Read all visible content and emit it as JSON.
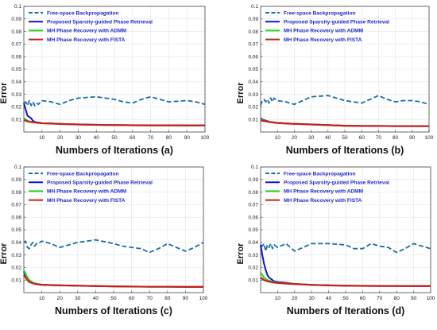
{
  "chart_data": [
    {
      "type": "line",
      "xlabel": "Numbers of Iterations (a)",
      "ylabel": "Error",
      "xlim": [
        0,
        100
      ],
      "ylim": [
        0,
        0.1
      ],
      "xticks": [
        "10",
        "20",
        "30",
        "40",
        "50",
        "60",
        "70",
        "80",
        "90",
        "100"
      ],
      "yticks": [
        "0.01",
        "0.02",
        "0.03",
        "0.04",
        "0.05",
        "0.06",
        "0.07",
        "0.08",
        "0.09",
        "0.1"
      ],
      "legend": "top-left",
      "series": [
        {
          "name": "Free-space Backpropagation",
          "color": "#1a6fa3",
          "style": "dashed",
          "x": [
            0,
            1,
            2,
            3,
            4,
            5,
            6,
            7,
            8,
            10,
            15,
            20,
            25,
            30,
            40,
            50,
            55,
            60,
            65,
            70,
            75,
            80,
            85,
            90,
            95,
            100
          ],
          "y": [
            0.023,
            0.024,
            0.021,
            0.025,
            0.021,
            0.024,
            0.021,
            0.023,
            0.022,
            0.025,
            0.024,
            0.022,
            0.025,
            0.027,
            0.028,
            0.026,
            0.024,
            0.023,
            0.026,
            0.028,
            0.026,
            0.024,
            0.0245,
            0.025,
            0.024,
            0.022
          ]
        },
        {
          "name": "Proposed Sparsity-guided Phase Retrieval",
          "color": "#1414c8",
          "style": "solid",
          "x": [
            0,
            1,
            2,
            3,
            4,
            5,
            6,
            8,
            10,
            15,
            20,
            30,
            40,
            50,
            60,
            70,
            80,
            90,
            100
          ],
          "y": [
            0.023,
            0.018,
            0.013,
            0.012,
            0.011,
            0.009,
            0.008,
            0.0075,
            0.007,
            0.0068,
            0.0065,
            0.006,
            0.0057,
            0.0055,
            0.0054,
            0.0053,
            0.0053,
            0.0052,
            0.0052
          ]
        },
        {
          "name": "MH Phase Recovery with ADMM",
          "color": "#22d622",
          "style": "solid",
          "x": [
            0,
            1,
            2,
            3,
            4,
            5,
            6,
            8,
            10,
            15,
            20,
            30,
            40,
            50,
            60,
            70,
            80,
            90,
            100
          ],
          "y": [
            0.011,
            0.01,
            0.009,
            0.0085,
            0.008,
            0.0078,
            0.0076,
            0.0073,
            0.007,
            0.0067,
            0.0064,
            0.006,
            0.0057,
            0.0055,
            0.0054,
            0.0053,
            0.0053,
            0.0052,
            0.0052
          ]
        },
        {
          "name": "MH Phase Recovery with FISTA",
          "color": "#c81e1e",
          "style": "solid",
          "x": [
            0,
            1,
            2,
            3,
            4,
            5,
            6,
            8,
            10,
            15,
            20,
            30,
            40,
            50,
            60,
            70,
            80,
            90,
            100
          ],
          "y": [
            0.0095,
            0.009,
            0.0085,
            0.0082,
            0.008,
            0.0078,
            0.0076,
            0.0073,
            0.007,
            0.0067,
            0.0064,
            0.006,
            0.0057,
            0.0055,
            0.0054,
            0.0053,
            0.0053,
            0.0052,
            0.0052
          ]
        }
      ]
    },
    {
      "type": "line",
      "xlabel": "Numbers of Iterations (b)",
      "ylabel": "Error",
      "xlim": [
        0,
        100
      ],
      "ylim": [
        0,
        0.1
      ],
      "xticks": [
        "10",
        "20",
        "30",
        "40",
        "50",
        "60",
        "70",
        "80",
        "90",
        "100"
      ],
      "yticks": [
        "0.01",
        "0.02",
        "0.03",
        "0.04",
        "0.05",
        "0.06",
        "0.07",
        "0.08",
        "0.09",
        "0.1"
      ],
      "legend": "top-left",
      "series": [
        {
          "name": "Free-space Backpropagation",
          "color": "#1a6fa3",
          "style": "dashed",
          "x": [
            0,
            1,
            2,
            3,
            4,
            5,
            6,
            7,
            8,
            10,
            15,
            20,
            25,
            30,
            40,
            50,
            55,
            60,
            65,
            70,
            75,
            80,
            85,
            90,
            95,
            100
          ],
          "y": [
            0.021,
            0.025,
            0.026,
            0.024,
            0.026,
            0.023,
            0.027,
            0.024,
            0.027,
            0.025,
            0.024,
            0.022,
            0.025,
            0.028,
            0.029,
            0.025,
            0.024,
            0.023,
            0.026,
            0.029,
            0.026,
            0.024,
            0.025,
            0.025,
            0.024,
            0.022
          ]
        },
        {
          "name": "Proposed Sparsity-guided Phase Retrieval",
          "color": "#1414c8",
          "style": "solid",
          "x": [
            0,
            1,
            2,
            3,
            4,
            5,
            6,
            8,
            10,
            15,
            20,
            30,
            40,
            50,
            60,
            70,
            80,
            90,
            100
          ],
          "y": [
            0.011,
            0.01,
            0.0095,
            0.009,
            0.0087,
            0.0083,
            0.008,
            0.0075,
            0.0072,
            0.0068,
            0.0065,
            0.006,
            0.0055,
            0.005,
            0.0048,
            0.0048,
            0.0047,
            0.0047,
            0.0047
          ]
        },
        {
          "name": "MH Phase Recovery with ADMM",
          "color": "#22d622",
          "style": "solid",
          "x": [
            0,
            1,
            2,
            3,
            4,
            5,
            6,
            8,
            10,
            15,
            20,
            30,
            40,
            50,
            60,
            70,
            80,
            90,
            100
          ],
          "y": [
            0.01,
            0.0095,
            0.009,
            0.0087,
            0.0085,
            0.0082,
            0.008,
            0.0075,
            0.0072,
            0.0068,
            0.0065,
            0.006,
            0.0055,
            0.005,
            0.0048,
            0.0048,
            0.0047,
            0.0047,
            0.0047
          ]
        },
        {
          "name": "MH Phase Recovery with FISTA",
          "color": "#c81e1e",
          "style": "solid",
          "x": [
            0,
            1,
            2,
            3,
            4,
            5,
            6,
            8,
            10,
            15,
            20,
            30,
            40,
            50,
            60,
            70,
            80,
            90,
            100
          ],
          "y": [
            0.0095,
            0.009,
            0.0087,
            0.0085,
            0.0083,
            0.008,
            0.0078,
            0.0075,
            0.0072,
            0.0068,
            0.0065,
            0.006,
            0.0055,
            0.005,
            0.0048,
            0.0048,
            0.0047,
            0.0047,
            0.0047
          ]
        }
      ]
    },
    {
      "type": "line",
      "xlabel": "Numbers of Iterations (c)",
      "ylabel": "Error",
      "xlim": [
        0,
        100
      ],
      "ylim": [
        0,
        0.1
      ],
      "xticks": [
        "10",
        "20",
        "30",
        "40",
        "50",
        "60",
        "70",
        "80",
        "90",
        "100"
      ],
      "yticks": [
        "0.01",
        "0.02",
        "0.03",
        "0.04",
        "0.05",
        "0.06",
        "0.07",
        "0.08",
        "0.09",
        "0.1"
      ],
      "legend": "top-left",
      "series": [
        {
          "name": "Free-space Backpropagation",
          "color": "#1a6fa3",
          "style": "dashed",
          "x": [
            0,
            1,
            2,
            3,
            4,
            5,
            6,
            7,
            8,
            10,
            15,
            20,
            25,
            30,
            40,
            50,
            55,
            60,
            65,
            70,
            75,
            80,
            85,
            90,
            95,
            100
          ],
          "y": [
            0.04,
            0.041,
            0.036,
            0.035,
            0.038,
            0.04,
            0.037,
            0.039,
            0.039,
            0.041,
            0.039,
            0.036,
            0.038,
            0.04,
            0.042,
            0.039,
            0.037,
            0.036,
            0.035,
            0.032,
            0.035,
            0.039,
            0.036,
            0.033,
            0.036,
            0.04
          ]
        },
        {
          "name": "Proposed Sparsity-guided Phase Retrieval",
          "color": "#1414c8",
          "style": "solid",
          "x": [
            0,
            1,
            2,
            3,
            4,
            5,
            6,
            8,
            10,
            15,
            20,
            30,
            40,
            50,
            60,
            70,
            80,
            90,
            100
          ],
          "y": [
            0.017,
            0.014,
            0.011,
            0.009,
            0.008,
            0.0075,
            0.007,
            0.0065,
            0.0062,
            0.006,
            0.0058,
            0.0055,
            0.0052,
            0.005,
            0.0048,
            0.0047,
            0.0047,
            0.0046,
            0.0046
          ]
        },
        {
          "name": "MH Phase Recovery with ADMM",
          "color": "#22d622",
          "style": "solid",
          "x": [
            0,
            1,
            2,
            3,
            4,
            5,
            6,
            8,
            10,
            15,
            20,
            30,
            40,
            50,
            60,
            70,
            80,
            90,
            100
          ],
          "y": [
            0.018,
            0.015,
            0.012,
            0.01,
            0.009,
            0.008,
            0.0075,
            0.0068,
            0.0064,
            0.006,
            0.0058,
            0.0055,
            0.0052,
            0.005,
            0.0048,
            0.0047,
            0.0047,
            0.0046,
            0.0046
          ]
        },
        {
          "name": "MH Phase Recovery with FISTA",
          "color": "#c81e1e",
          "style": "solid",
          "x": [
            0,
            1,
            2,
            3,
            4,
            5,
            6,
            8,
            10,
            15,
            20,
            30,
            40,
            50,
            60,
            70,
            80,
            90,
            100
          ],
          "y": [
            0.014,
            0.012,
            0.01,
            0.0085,
            0.008,
            0.0075,
            0.007,
            0.0066,
            0.0063,
            0.006,
            0.0058,
            0.0055,
            0.0052,
            0.005,
            0.0048,
            0.0047,
            0.0047,
            0.0046,
            0.0046
          ]
        }
      ]
    },
    {
      "type": "line",
      "xlabel": "Numbers of Iterations (d)",
      "ylabel": "Error",
      "xlim": [
        0,
        100
      ],
      "ylim": [
        0,
        0.1
      ],
      "xticks": [
        "10",
        "20",
        "30",
        "40",
        "50",
        "60",
        "70",
        "80",
        "90",
        "100"
      ],
      "yticks": [
        "0.01",
        "0.02",
        "0.03",
        "0.04",
        "0.05",
        "0.06",
        "0.07",
        "0.08",
        "0.09",
        "0.1"
      ],
      "legend": "top-left",
      "series": [
        {
          "name": "Free-space Backpropagation",
          "color": "#1a6fa3",
          "style": "dashed",
          "x": [
            0,
            1,
            2,
            3,
            4,
            5,
            6,
            7,
            8,
            10,
            15,
            20,
            25,
            30,
            40,
            50,
            55,
            60,
            65,
            70,
            75,
            80,
            85,
            90,
            95,
            100
          ],
          "y": [
            0.038,
            0.037,
            0.039,
            0.033,
            0.038,
            0.036,
            0.039,
            0.035,
            0.038,
            0.036,
            0.039,
            0.033,
            0.036,
            0.039,
            0.039,
            0.038,
            0.035,
            0.035,
            0.039,
            0.037,
            0.036,
            0.032,
            0.035,
            0.039,
            0.037,
            0.035
          ]
        },
        {
          "name": "Proposed Sparsity-guided Phase Retrieval",
          "color": "#1414c8",
          "style": "solid",
          "x": [
            0,
            1,
            2,
            3,
            4,
            5,
            6,
            8,
            10,
            15,
            20,
            30,
            40,
            50,
            60,
            70,
            80,
            90,
            100
          ],
          "y": [
            0.038,
            0.03,
            0.023,
            0.018,
            0.014,
            0.012,
            0.011,
            0.009,
            0.0085,
            0.0078,
            0.007,
            0.0062,
            0.0058,
            0.0055,
            0.0054,
            0.0053,
            0.0053,
            0.0052,
            0.0052
          ]
        },
        {
          "name": "MH Phase Recovery with ADMM",
          "color": "#22d622",
          "style": "solid",
          "x": [
            0,
            1,
            2,
            3,
            4,
            5,
            6,
            8,
            10,
            15,
            20,
            30,
            40,
            50,
            60,
            70,
            80,
            90,
            100
          ],
          "y": [
            0.016,
            0.014,
            0.012,
            0.011,
            0.01,
            0.0095,
            0.009,
            0.0085,
            0.008,
            0.0074,
            0.007,
            0.0062,
            0.0058,
            0.0055,
            0.0054,
            0.0053,
            0.0053,
            0.0052,
            0.0052
          ]
        },
        {
          "name": "MH Phase Recovery with FISTA",
          "color": "#c81e1e",
          "style": "solid",
          "x": [
            0,
            1,
            2,
            3,
            4,
            5,
            6,
            8,
            10,
            15,
            20,
            30,
            40,
            50,
            60,
            70,
            80,
            90,
            100
          ],
          "y": [
            0.012,
            0.011,
            0.01,
            0.0095,
            0.009,
            0.0088,
            0.0085,
            0.008,
            0.0077,
            0.0072,
            0.0068,
            0.0062,
            0.0058,
            0.0055,
            0.0054,
            0.0053,
            0.0053,
            0.0052,
            0.0052
          ]
        }
      ]
    }
  ]
}
